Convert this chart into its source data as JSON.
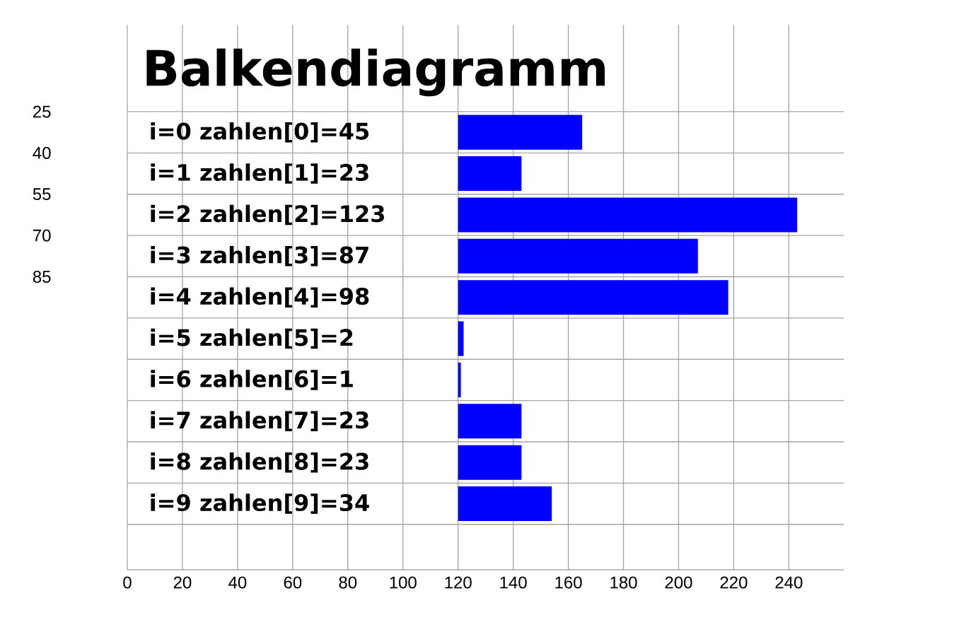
{
  "chart_data": {
    "type": "bar",
    "orientation": "horizontal",
    "title": "Balkendiagramm",
    "categories": [
      "i=0  zahlen[0]=45",
      "i=1  zahlen[1]=23",
      "i=2  zahlen[2]=123",
      "i=3  zahlen[3]=87",
      "i=4  zahlen[4]=98",
      "i=5  zahlen[5]=2",
      "i=6  zahlen[6]=1",
      "i=7  zahlen[7]=23",
      "i=8  zahlen[8]=23",
      "i=9  zahlen[9]=34"
    ],
    "values": [
      45,
      23,
      123,
      87,
      98,
      2,
      1,
      23,
      23,
      34
    ],
    "base": [
      120,
      120,
      120,
      120,
      120,
      120,
      120,
      120,
      120,
      120
    ],
    "color": "#0000ff",
    "xlim": [
      0,
      260
    ],
    "xticks": [
      0,
      20,
      40,
      60,
      80,
      100,
      120,
      140,
      160,
      180,
      200,
      220,
      240
    ],
    "grid": true,
    "annotations": [
      "25",
      "40",
      "55",
      "70",
      "85"
    ]
  }
}
